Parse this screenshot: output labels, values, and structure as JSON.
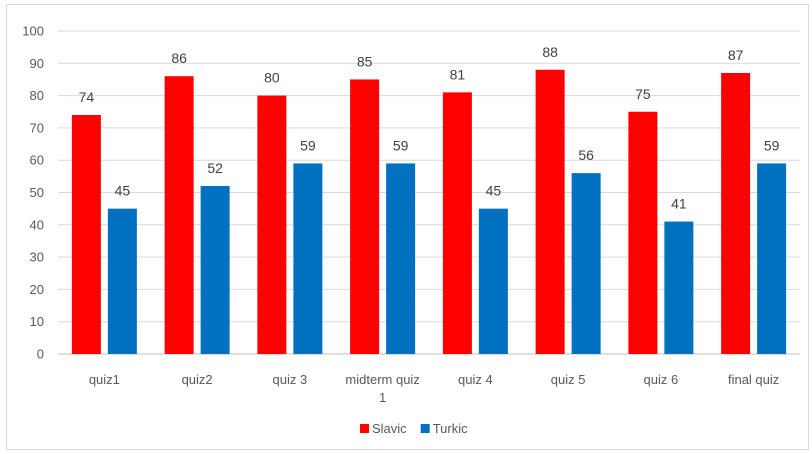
{
  "chart_data": {
    "type": "bar",
    "categories": [
      "quiz1",
      "quiz2",
      "quiz 3",
      "midterm quiz 1",
      "quiz 4",
      "quiz 5",
      "quiz 6",
      "final quiz"
    ],
    "category_lines": [
      [
        "quiz1"
      ],
      [
        "quiz2"
      ],
      [
        "quiz 3"
      ],
      [
        "midterm quiz",
        "1"
      ],
      [
        "quiz 4"
      ],
      [
        "quiz 5"
      ],
      [
        "quiz 6"
      ],
      [
        "final quiz"
      ]
    ],
    "series": [
      {
        "name": "Slavic",
        "color": "#ff0000",
        "values": [
          74,
          86,
          80,
          85,
          81,
          88,
          75,
          87
        ]
      },
      {
        "name": "Turkic",
        "color": "#0070c0",
        "values": [
          45,
          52,
          59,
          59,
          45,
          56,
          41,
          59
        ]
      }
    ],
    "yticks": [
      0,
      10,
      20,
      30,
      40,
      50,
      60,
      70,
      80,
      90,
      100
    ],
    "ylim": [
      0,
      100
    ],
    "grid": true,
    "legend_position": "bottom",
    "data_labels": true
  }
}
